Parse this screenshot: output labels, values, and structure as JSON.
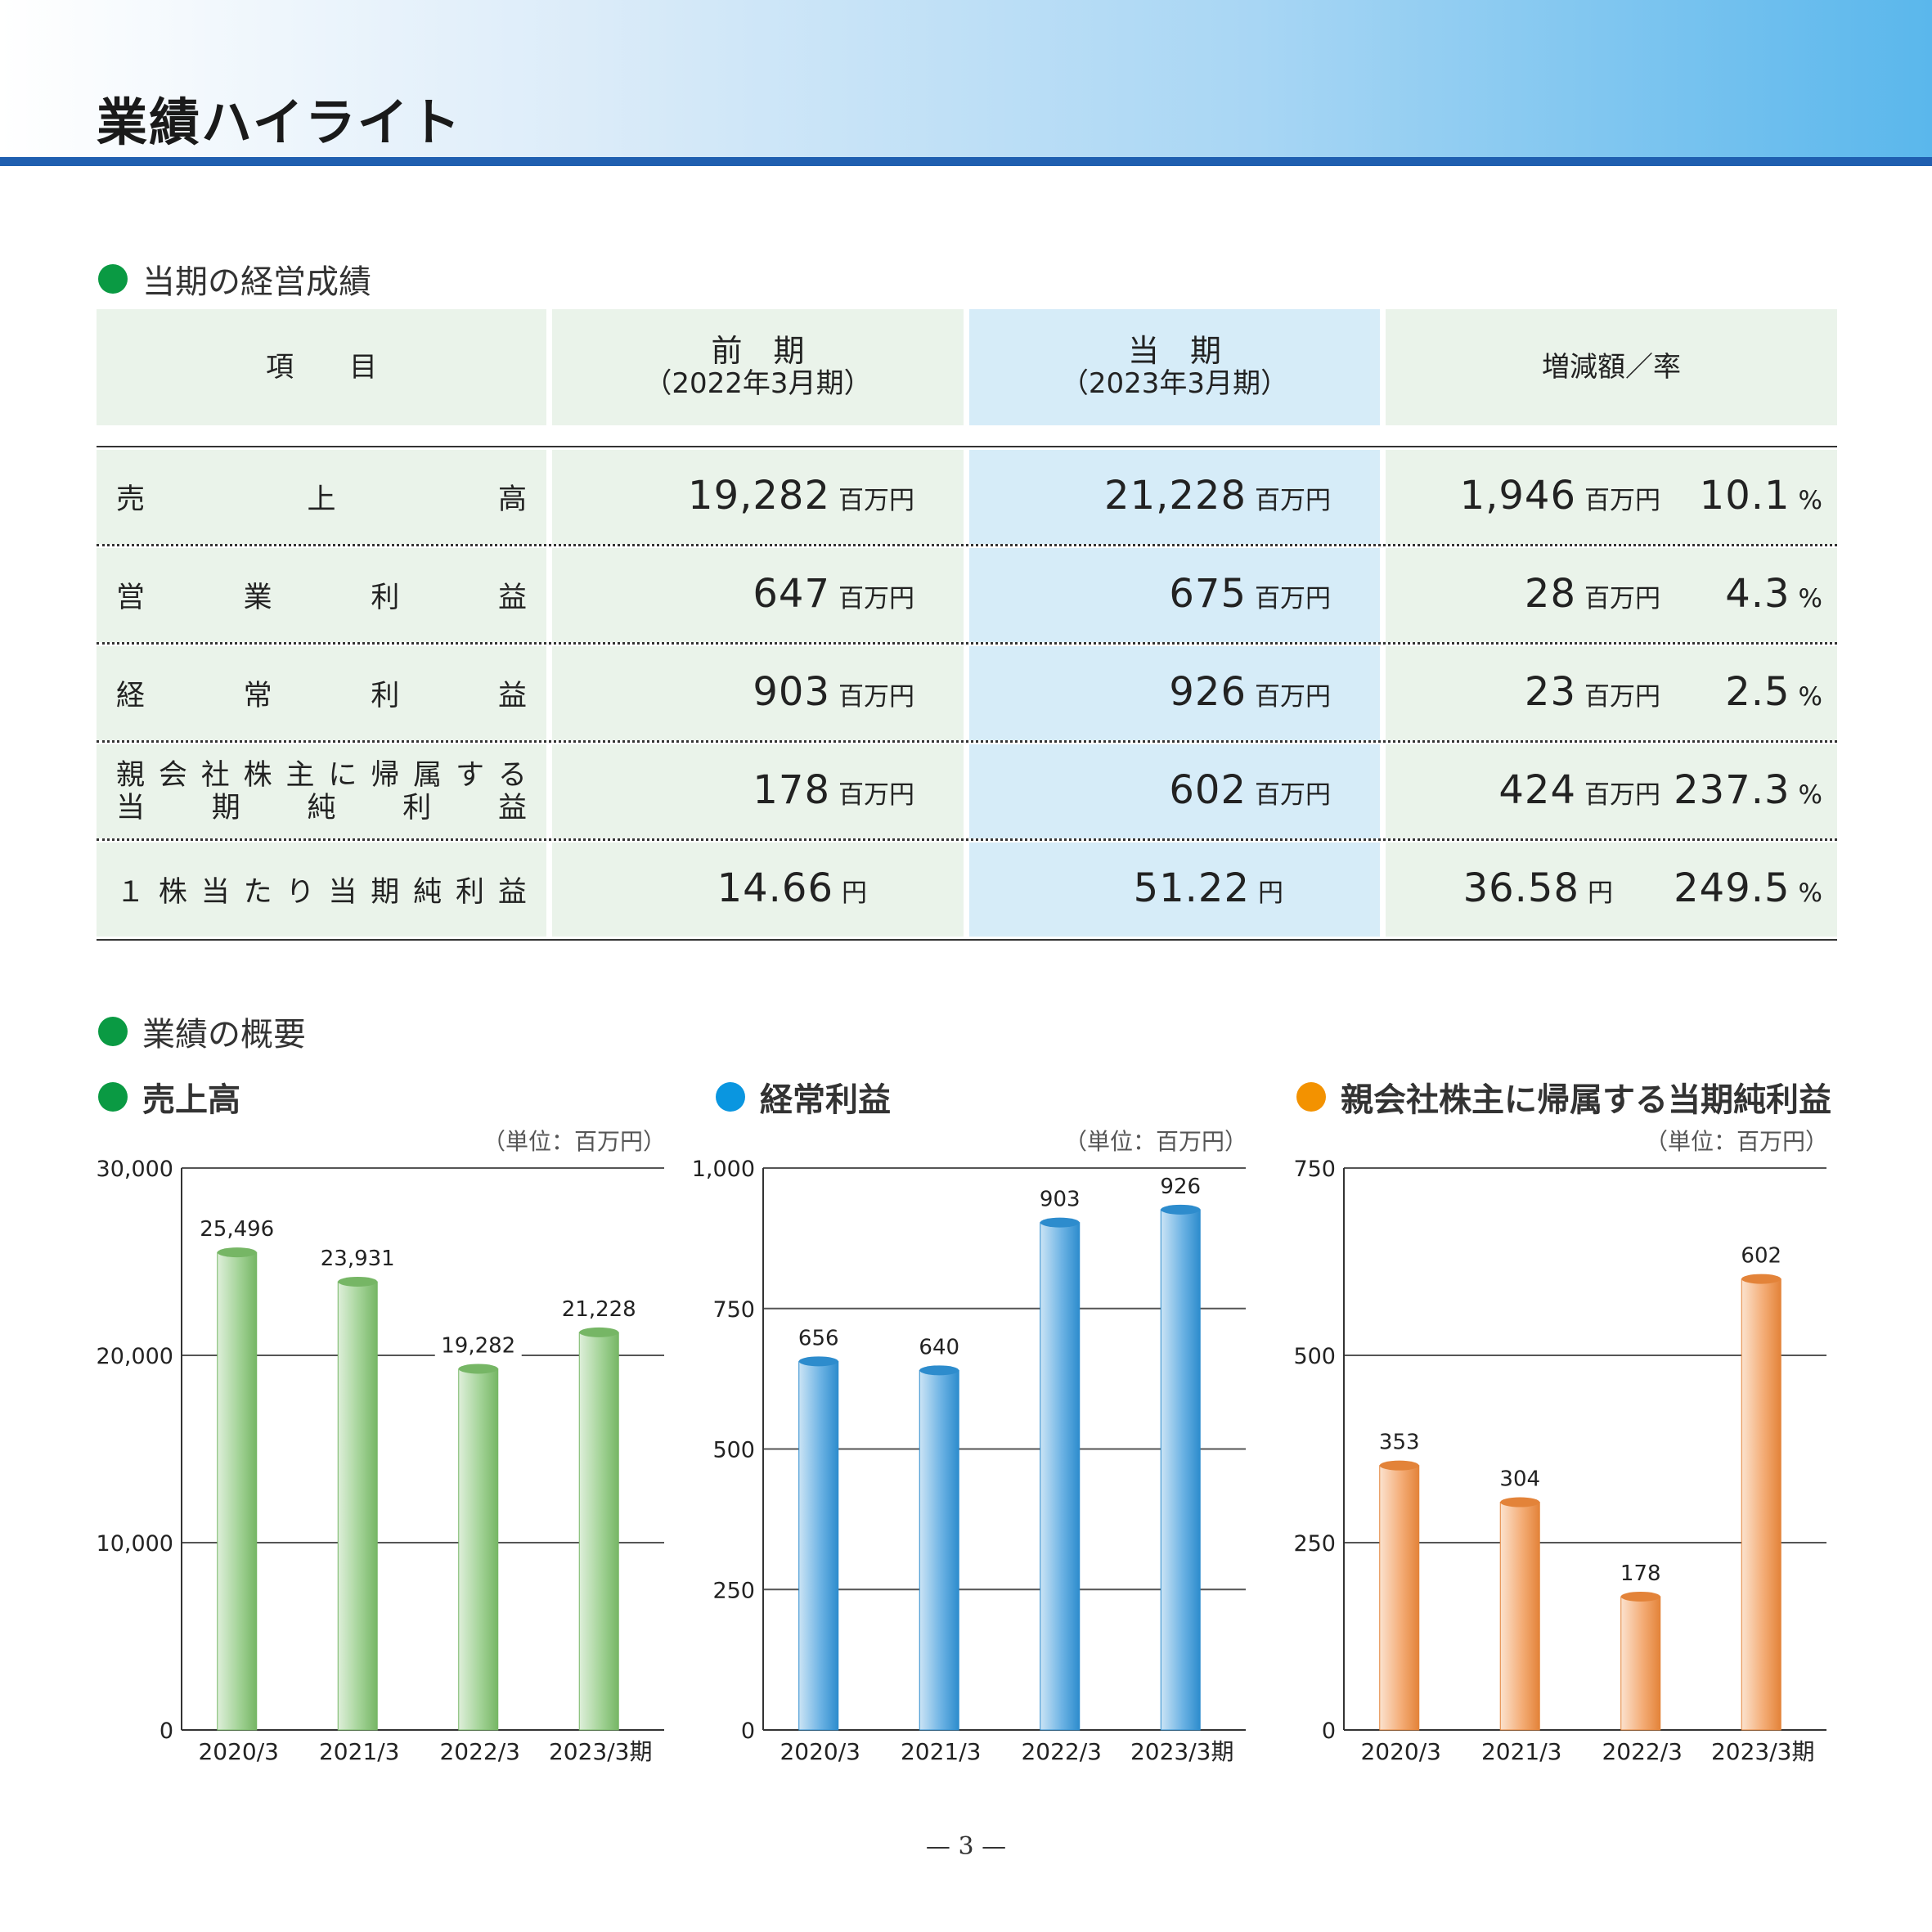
{
  "page_title": "業績ハイライト",
  "section1_title": "当期の経営成績",
  "table": {
    "headers": {
      "item": "項　　目",
      "prev_main": "前　期",
      "prev_sub": "（2022年3月期）",
      "curr_main": "当　期",
      "curr_sub": "（2023年3月期）",
      "change": "増減額／率"
    },
    "rows": [
      {
        "label_chars": [
          "売",
          "上",
          "高"
        ],
        "prev_value": "19,282",
        "prev_unit": "百万円",
        "curr_value": "21,228",
        "curr_unit": "百万円",
        "diff_value": "1,946",
        "diff_unit": "百万円",
        "rate_value": "10.1",
        "rate_unit": "%"
      },
      {
        "label_chars": [
          "営",
          "業",
          "利",
          "益"
        ],
        "prev_value": "647",
        "prev_unit": "百万円",
        "curr_value": "675",
        "curr_unit": "百万円",
        "diff_value": "28",
        "diff_unit": "百万円",
        "rate_value": "4.3",
        "rate_unit": "%"
      },
      {
        "label_chars": [
          "経",
          "常",
          "利",
          "益"
        ],
        "prev_value": "903",
        "prev_unit": "百万円",
        "curr_value": "926",
        "curr_unit": "百万円",
        "diff_value": "23",
        "diff_unit": "百万円",
        "rate_value": "2.5",
        "rate_unit": "%"
      },
      {
        "label_chars": [
          "親",
          "会",
          "社",
          "株",
          "主",
          "に",
          "帰",
          "属",
          "す",
          "る"
        ],
        "label_chars2": [
          "当",
          "期",
          "純",
          "利",
          "益"
        ],
        "prev_value": "178",
        "prev_unit": "百万円",
        "curr_value": "602",
        "curr_unit": "百万円",
        "diff_value": "424",
        "diff_unit": "百万円",
        "rate_value": "237.3",
        "rate_unit": "%"
      },
      {
        "label_chars": [
          "１",
          "株",
          "当",
          "た",
          "り",
          "当",
          "期",
          "純",
          "利",
          "益"
        ],
        "prev_value": "14.66",
        "prev_unit": "円",
        "curr_value": "51.22",
        "curr_unit": "円",
        "diff_value": "36.58",
        "diff_unit": "円",
        "rate_value": "249.5",
        "rate_unit": "%"
      }
    ]
  },
  "section2_title": "業績の概要",
  "chart_data": [
    {
      "type": "bar",
      "title": "売上高",
      "unit_note": "（単位：百万円）",
      "categories": [
        "2020/3",
        "2021/3",
        "2022/3",
        "2023/3期"
      ],
      "values": [
        25496,
        23931,
        19282,
        21228
      ],
      "value_labels": [
        "25,496",
        "23,931",
        "19,282",
        "21,228"
      ],
      "ylim": [
        0,
        30000
      ],
      "yticks": [
        0,
        10000,
        20000,
        30000
      ],
      "ytick_labels": [
        "0",
        "10,000",
        "20,000",
        "30,000"
      ],
      "grid": true,
      "color": "#7cc06a",
      "title_dot_color": "#0a9a43"
    },
    {
      "type": "bar",
      "title": "経常利益",
      "unit_note": "（単位：百万円）",
      "categories": [
        "2020/3",
        "2021/3",
        "2022/3",
        "2023/3期"
      ],
      "values": [
        656,
        640,
        903,
        926
      ],
      "value_labels": [
        "656",
        "640",
        "903",
        "926"
      ],
      "ylim": [
        0,
        1000
      ],
      "yticks": [
        0,
        250,
        500,
        750,
        1000
      ],
      "ytick_labels": [
        "0",
        "250",
        "500",
        "750",
        "1,000"
      ],
      "grid": true,
      "color": "#2f93d8",
      "title_dot_color": "#0a96e0"
    },
    {
      "type": "bar",
      "title": "親会社株主に帰属する当期純利益",
      "unit_note": "（単位：百万円）",
      "categories": [
        "2020/3",
        "2021/3",
        "2022/3",
        "2023/3期"
      ],
      "values": [
        353,
        304,
        178,
        602
      ],
      "value_labels": [
        "353",
        "304",
        "178",
        "602"
      ],
      "ylim": [
        0,
        750
      ],
      "yticks": [
        0,
        250,
        500,
        750
      ],
      "ytick_labels": [
        "0",
        "250",
        "500",
        "750"
      ],
      "grid": true,
      "color": "#ef8a3c",
      "title_dot_color": "#f39200"
    }
  ],
  "page_number": "— 3 —",
  "colors": {
    "section_dot": "#0a9a43",
    "header_rule": "#1f5fb0",
    "table_green": "#eaf3ea",
    "table_blue": "#d6ecf8"
  }
}
